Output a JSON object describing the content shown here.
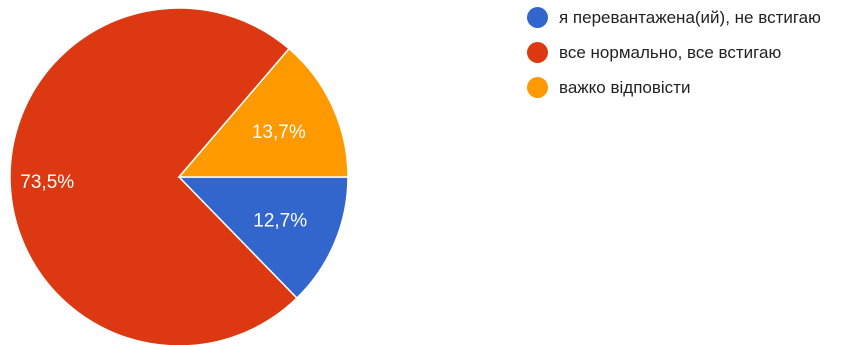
{
  "chart_data": {
    "type": "pie",
    "slices": [
      {
        "label": "я перевантажена(ий), не встигаю",
        "value": 12.7,
        "display": "12,7%",
        "color": "#3366cc"
      },
      {
        "label": "все нормально, все встигаю",
        "value": 73.5,
        "display": "73,5%",
        "color": "#dc3912"
      },
      {
        "label": "важко відповісти",
        "value": 13.7,
        "display": "13,7%",
        "color": "#ff9900"
      }
    ],
    "legend_position": "right"
  }
}
